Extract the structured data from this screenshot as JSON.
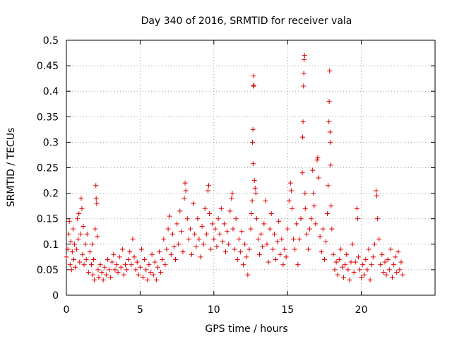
{
  "chart_data": {
    "type": "scatter",
    "title": "Day 340 of 2016, SRMTID for receiver vala",
    "xlabel": "GPS time / hours",
    "ylabel": "SRMTID / TECUs",
    "xlim": [
      0,
      25
    ],
    "ylim": [
      0,
      0.5
    ],
    "x_ticks": [
      0,
      5,
      10,
      15,
      20
    ],
    "y_ticks": [
      0,
      0.05,
      0.1,
      0.15,
      0.2,
      0.25,
      0.3,
      0.35,
      0.4,
      0.45,
      0.5
    ],
    "x_tick_labels": [
      "0",
      "5",
      "10",
      "15",
      "20"
    ],
    "y_tick_labels": [
      "0",
      "0.05",
      "0.1",
      "0.15",
      "0.2",
      "0.25",
      "0.3",
      "0.35",
      "0.4",
      "0.45",
      "0.5"
    ],
    "grid": true,
    "marker": "+",
    "color": "#e00000",
    "series": [
      {
        "name": "SRMTID",
        "points": [
          [
            0.0,
            0.075
          ],
          [
            0.1,
            0.09
          ],
          [
            0.15,
            0.12
          ],
          [
            0.2,
            0.145
          ],
          [
            0.25,
            0.06
          ],
          [
            0.3,
            0.105
          ],
          [
            0.35,
            0.05
          ],
          [
            0.4,
            0.085
          ],
          [
            0.45,
            0.13
          ],
          [
            0.5,
            0.07
          ],
          [
            0.55,
            0.1
          ],
          [
            0.6,
            0.055
          ],
          [
            0.7,
            0.09
          ],
          [
            0.75,
            0.15
          ],
          [
            0.8,
            0.11
          ],
          [
            0.85,
            0.16
          ],
          [
            0.9,
            0.065
          ],
          [
            0.95,
            0.12
          ],
          [
            1.0,
            0.19
          ],
          [
            1.05,
            0.17
          ],
          [
            1.1,
            0.08
          ],
          [
            1.15,
            0.135
          ],
          [
            1.2,
            0.06
          ],
          [
            1.3,
            0.1
          ],
          [
            1.35,
            0.07
          ],
          [
            1.4,
            0.12
          ],
          [
            1.5,
            0.045
          ],
          [
            1.6,
            0.085
          ],
          [
            1.7,
            0.06
          ],
          [
            1.75,
            0.1
          ],
          [
            1.8,
            0.04
          ],
          [
            1.85,
            0.07
          ],
          [
            1.9,
            0.03
          ],
          [
            1.95,
            0.13
          ],
          [
            2.0,
            0.215
          ],
          [
            2.02,
            0.19
          ],
          [
            2.05,
            0.18
          ],
          [
            2.1,
            0.115
          ],
          [
            2.15,
            0.05
          ],
          [
            2.2,
            0.035
          ],
          [
            2.3,
            0.06
          ],
          [
            2.4,
            0.045
          ],
          [
            2.5,
            0.03
          ],
          [
            2.6,
            0.055
          ],
          [
            2.7,
            0.04
          ],
          [
            2.8,
            0.07
          ],
          [
            2.9,
            0.05
          ],
          [
            3.0,
            0.035
          ],
          [
            3.1,
            0.065
          ],
          [
            3.2,
            0.08
          ],
          [
            3.3,
            0.05
          ],
          [
            3.4,
            0.06
          ],
          [
            3.5,
            0.045
          ],
          [
            3.6,
            0.075
          ],
          [
            3.7,
            0.055
          ],
          [
            3.8,
            0.09
          ],
          [
            3.9,
            0.04
          ],
          [
            4.0,
            0.06
          ],
          [
            4.1,
            0.05
          ],
          [
            4.2,
            0.07
          ],
          [
            4.3,
            0.085
          ],
          [
            4.4,
            0.06
          ],
          [
            4.5,
            0.11
          ],
          [
            4.6,
            0.075
          ],
          [
            4.7,
            0.05
          ],
          [
            4.8,
            0.065
          ],
          [
            4.9,
            0.04
          ],
          [
            5.0,
            0.055
          ],
          [
            5.1,
            0.09
          ],
          [
            5.2,
            0.035
          ],
          [
            5.3,
            0.07
          ],
          [
            5.4,
            0.05
          ],
          [
            5.5,
            0.03
          ],
          [
            5.6,
            0.06
          ],
          [
            5.7,
            0.045
          ],
          [
            5.8,
            0.08
          ],
          [
            5.9,
            0.04
          ],
          [
            6.0,
            0.065
          ],
          [
            6.1,
            0.03
          ],
          [
            6.2,
            0.055
          ],
          [
            6.3,
            0.085
          ],
          [
            6.4,
            0.045
          ],
          [
            6.5,
            0.07
          ],
          [
            6.6,
            0.11
          ],
          [
            6.7,
            0.06
          ],
          [
            6.8,
            0.09
          ],
          [
            6.9,
            0.13
          ],
          [
            7.0,
            0.155
          ],
          [
            7.1,
            0.08
          ],
          [
            7.2,
            0.12
          ],
          [
            7.3,
            0.095
          ],
          [
            7.4,
            0.07
          ],
          [
            7.5,
            0.14
          ],
          [
            7.6,
            0.1
          ],
          [
            7.7,
            0.165
          ],
          [
            7.8,
            0.125
          ],
          [
            7.9,
            0.085
          ],
          [
            8.0,
            0.19
          ],
          [
            8.05,
            0.22
          ],
          [
            8.1,
            0.205
          ],
          [
            8.2,
            0.15
          ],
          [
            8.3,
            0.11
          ],
          [
            8.4,
            0.13
          ],
          [
            8.5,
            0.08
          ],
          [
            8.6,
            0.18
          ],
          [
            8.7,
            0.12
          ],
          [
            8.8,
            0.095
          ],
          [
            8.9,
            0.15
          ],
          [
            9.0,
            0.11
          ],
          [
            9.1,
            0.075
          ],
          [
            9.2,
            0.135
          ],
          [
            9.3,
            0.1
          ],
          [
            9.4,
            0.17
          ],
          [
            9.5,
            0.12
          ],
          [
            9.6,
            0.205
          ],
          [
            9.65,
            0.215
          ],
          [
            9.7,
            0.16
          ],
          [
            9.8,
            0.09
          ],
          [
            9.9,
            0.14
          ],
          [
            10.0,
            0.11
          ],
          [
            10.1,
            0.13
          ],
          [
            10.2,
            0.095
          ],
          [
            10.3,
            0.15
          ],
          [
            10.4,
            0.12
          ],
          [
            10.5,
            0.17
          ],
          [
            10.6,
            0.105
          ],
          [
            10.7,
            0.14
          ],
          [
            10.8,
            0.085
          ],
          [
            10.9,
            0.125
          ],
          [
            11.0,
            0.1
          ],
          [
            11.1,
            0.165
          ],
          [
            11.2,
            0.19
          ],
          [
            11.25,
            0.2
          ],
          [
            11.3,
            0.13
          ],
          [
            11.4,
            0.09
          ],
          [
            11.5,
            0.15
          ],
          [
            11.6,
            0.07
          ],
          [
            11.7,
            0.11
          ],
          [
            11.8,
            0.085
          ],
          [
            11.9,
            0.125
          ],
          [
            12.0,
            0.06
          ],
          [
            12.1,
            0.1
          ],
          [
            12.2,
            0.075
          ],
          [
            12.3,
            0.04
          ],
          [
            12.4,
            0.09
          ],
          [
            12.5,
            0.13
          ],
          [
            12.55,
            0.16
          ],
          [
            12.6,
            0.185
          ],
          [
            12.62,
            0.3
          ],
          [
            12.65,
            0.325
          ],
          [
            12.66,
            0.258
          ],
          [
            12.68,
            0.41
          ],
          [
            12.7,
            0.43
          ],
          [
            12.72,
            0.412
          ],
          [
            12.75,
            0.225
          ],
          [
            12.8,
            0.21
          ],
          [
            12.85,
            0.2
          ],
          [
            12.9,
            0.15
          ],
          [
            13.0,
            0.11
          ],
          [
            13.1,
            0.08
          ],
          [
            13.2,
            0.12
          ],
          [
            13.3,
            0.095
          ],
          [
            13.4,
            0.14
          ],
          [
            13.5,
            0.185
          ],
          [
            13.6,
            0.1
          ],
          [
            13.7,
            0.065
          ],
          [
            13.8,
            0.13
          ],
          [
            13.9,
            0.16
          ],
          [
            14.0,
            0.09
          ],
          [
            14.1,
            0.12
          ],
          [
            14.2,
            0.07
          ],
          [
            14.3,
            0.105
          ],
          [
            14.4,
            0.145
          ],
          [
            14.5,
            0.08
          ],
          [
            14.6,
            0.11
          ],
          [
            14.7,
            0.06
          ],
          [
            14.8,
            0.09
          ],
          [
            14.9,
            0.075
          ],
          [
            15.0,
            0.13
          ],
          [
            15.1,
            0.185
          ],
          [
            15.2,
            0.22
          ],
          [
            15.25,
            0.205
          ],
          [
            15.3,
            0.17
          ],
          [
            15.4,
            0.11
          ],
          [
            15.5,
            0.09
          ],
          [
            15.6,
            0.14
          ],
          [
            15.7,
            0.06
          ],
          [
            15.8,
            0.11
          ],
          [
            15.9,
            0.15
          ],
          [
            16.0,
            0.24
          ],
          [
            16.02,
            0.31
          ],
          [
            16.05,
            0.34
          ],
          [
            16.08,
            0.41
          ],
          [
            16.1,
            0.435
          ],
          [
            16.12,
            0.462
          ],
          [
            16.15,
            0.47
          ],
          [
            16.18,
            0.2
          ],
          [
            16.2,
            0.17
          ],
          [
            16.3,
            0.12
          ],
          [
            16.4,
            0.09
          ],
          [
            16.5,
            0.13
          ],
          [
            16.6,
            0.15
          ],
          [
            16.7,
            0.245
          ],
          [
            16.75,
            0.2
          ],
          [
            16.8,
            0.175
          ],
          [
            16.9,
            0.14
          ],
          [
            17.0,
            0.265
          ],
          [
            17.05,
            0.27
          ],
          [
            17.1,
            0.23
          ],
          [
            17.2,
            0.115
          ],
          [
            17.3,
            0.085
          ],
          [
            17.4,
            0.13
          ],
          [
            17.5,
            0.07
          ],
          [
            17.6,
            0.105
          ],
          [
            17.7,
            0.16
          ],
          [
            17.75,
            0.215
          ],
          [
            17.8,
            0.34
          ],
          [
            17.82,
            0.38
          ],
          [
            17.85,
            0.44
          ],
          [
            17.88,
            0.32
          ],
          [
            17.9,
            0.3
          ],
          [
            17.92,
            0.255
          ],
          [
            17.95,
            0.175
          ],
          [
            18.0,
            0.13
          ],
          [
            18.1,
            0.08
          ],
          [
            18.2,
            0.05
          ],
          [
            18.3,
            0.065
          ],
          [
            18.4,
            0.04
          ],
          [
            18.5,
            0.07
          ],
          [
            18.6,
            0.09
          ],
          [
            18.7,
            0.055
          ],
          [
            18.8,
            0.035
          ],
          [
            18.9,
            0.06
          ],
          [
            19.0,
            0.08
          ],
          [
            19.1,
            0.05
          ],
          [
            19.2,
            0.03
          ],
          [
            19.3,
            0.065
          ],
          [
            19.4,
            0.1
          ],
          [
            19.5,
            0.045
          ],
          [
            19.6,
            0.065
          ],
          [
            19.7,
            0.17
          ],
          [
            19.75,
            0.15
          ],
          [
            19.8,
            0.075
          ],
          [
            19.9,
            0.05
          ],
          [
            20.0,
            0.035
          ],
          [
            20.1,
            0.06
          ],
          [
            20.2,
            0.04
          ],
          [
            20.3,
            0.07
          ],
          [
            20.4,
            0.05
          ],
          [
            20.5,
            0.09
          ],
          [
            20.6,
            0.03
          ],
          [
            20.7,
            0.06
          ],
          [
            20.8,
            0.075
          ],
          [
            20.9,
            0.1
          ],
          [
            21.0,
            0.205
          ],
          [
            21.05,
            0.195
          ],
          [
            21.1,
            0.15
          ],
          [
            21.2,
            0.11
          ],
          [
            21.3,
            0.06
          ],
          [
            21.4,
            0.08
          ],
          [
            21.5,
            0.045
          ],
          [
            21.6,
            0.065
          ],
          [
            21.7,
            0.04
          ],
          [
            21.8,
            0.07
          ],
          [
            21.9,
            0.05
          ],
          [
            22.0,
            0.09
          ],
          [
            22.1,
            0.035
          ],
          [
            22.2,
            0.06
          ],
          [
            22.3,
            0.075
          ],
          [
            22.4,
            0.045
          ],
          [
            22.5,
            0.085
          ],
          [
            22.6,
            0.05
          ],
          [
            22.7,
            0.065
          ],
          [
            22.8,
            0.04
          ]
        ]
      }
    ]
  }
}
